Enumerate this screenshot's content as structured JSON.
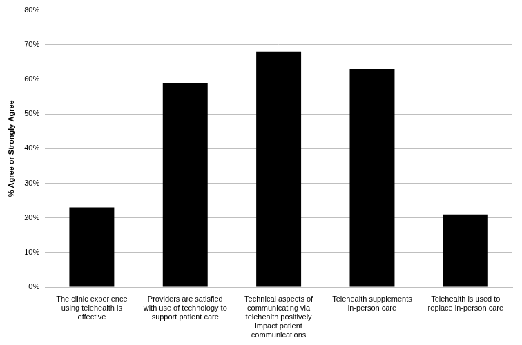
{
  "chart_data": {
    "type": "bar",
    "categories": [
      "The clinic experience using telehealth is effective",
      "Providers are satisfied with use of technology to support patient care",
      "Technical aspects of communicating via telehealth positively impact patient communications",
      "Telehealth supplements in-person care",
      "Telehealth is used to replace in-person care"
    ],
    "values": [
      23,
      59,
      68,
      63,
      21
    ],
    "color": "#000000",
    "y_label": "% Agree or Strongly Agree",
    "ylim": [
      0,
      80
    ],
    "yticks": [
      {
        "value": 0,
        "label": "0%"
      },
      {
        "value": 10,
        "label": "10%"
      },
      {
        "value": 20,
        "label": "20%"
      },
      {
        "value": 30,
        "label": "30%"
      },
      {
        "value": 40,
        "label": "40%"
      },
      {
        "value": 50,
        "label": "50%"
      },
      {
        "value": 60,
        "label": "60%"
      },
      {
        "value": 70,
        "label": "70%"
      },
      {
        "value": 80,
        "label": "80%"
      }
    ],
    "grid": true
  }
}
